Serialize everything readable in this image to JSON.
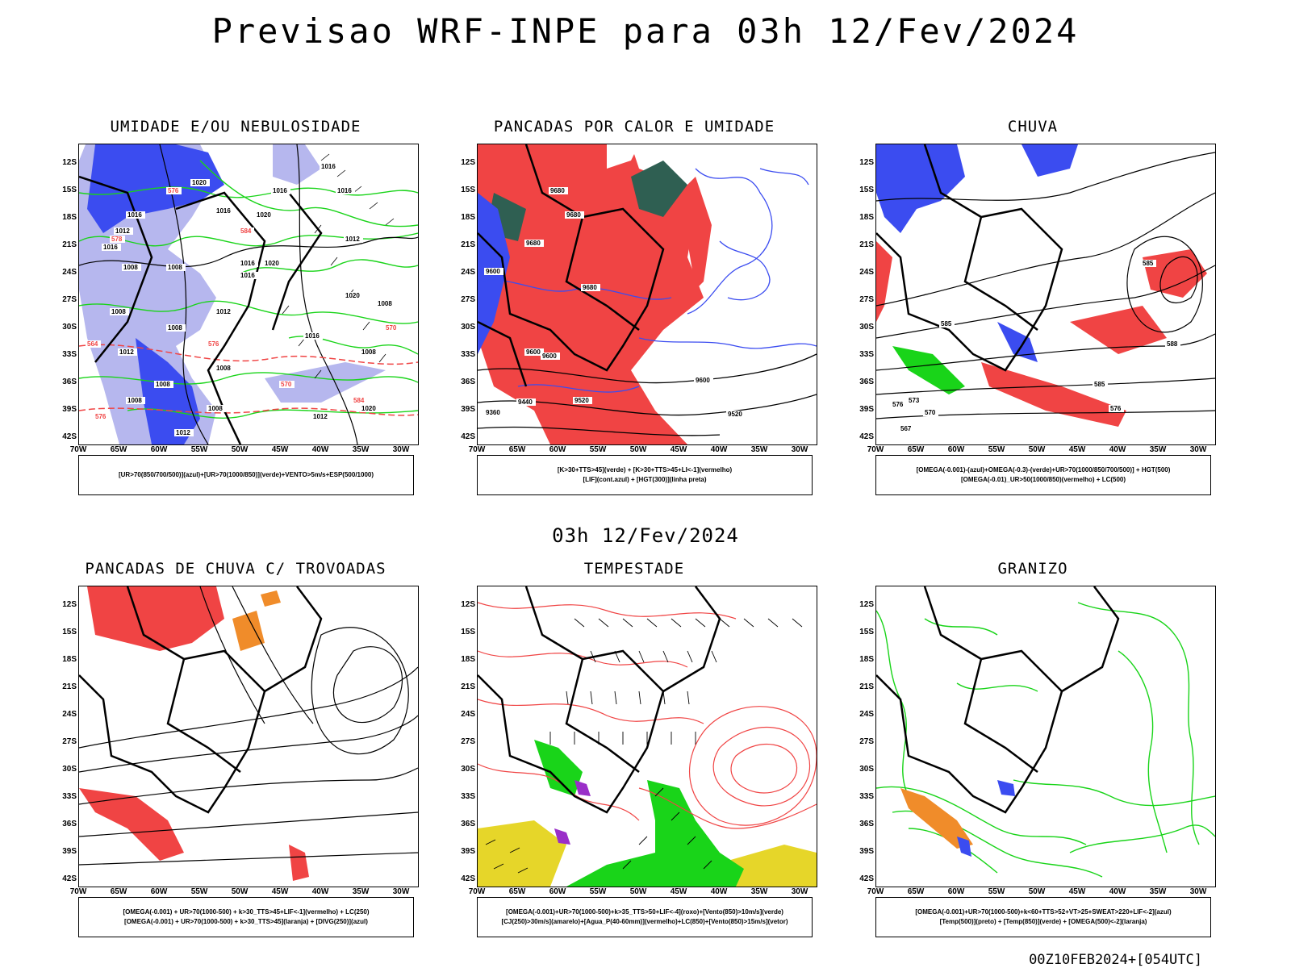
{
  "header": {
    "title": "Previsao WRF-INPE  para 03h 12/Fev/2024"
  },
  "subheader": {
    "time": "03h 12/Fev/2024"
  },
  "footer": {
    "run": "00Z10FEB2024+[054UTC]"
  },
  "axes": {
    "lat_labels": [
      "12S",
      "15S",
      "18S",
      "21S",
      "24S",
      "27S",
      "30S",
      "33S",
      "36S",
      "39S",
      "42S"
    ],
    "lon_labels": [
      "70W",
      "65W",
      "60W",
      "55W",
      "50W",
      "45W",
      "40W",
      "35W",
      "30W"
    ]
  },
  "colors": {
    "blue": "#3b4cf0",
    "light_blue": "#b6b7ee",
    "green": "#19d419",
    "red": "#f04444",
    "dark_teal": "#2f5f52",
    "orange": "#f08c2a",
    "yellow": "#e6d629",
    "purple": "#9a2fc8",
    "black": "#000000"
  },
  "panels": [
    {
      "title": "UMIDADE E/OU NEBULOSIDADE",
      "legend": [
        "[UR>70(850/700/500)](azul)+[UR>70(1000/850)](verde)+VENTO>5m/s+ESP(500/1000)"
      ]
    },
    {
      "title": "PANCADAS POR CALOR E UMIDADE",
      "legend": [
        "[K>30+TTS>45](verde) + [K>30+TTS>45+LI<-1](vermelho)",
        "[LIF](cont.azul) + [HGT(300)](linha preta)"
      ]
    },
    {
      "title": "CHUVA",
      "legend": [
        "[OMEGA(-0.001)-(azul)+OMEGA(-0.3)-(verde)+UR>70(1000/850/700/500)] + HGT(500)",
        "[OMEGA(-0.01)_UR>50(1000/850)(vermelho) + LC(500)"
      ]
    },
    {
      "title": "PANCADAS DE CHUVA C/ TROVOADAS",
      "legend": [
        "[OMEGA(-0.001) + UR>70(1000-500) + k>30_TTS>45+LIF<-1](vermelho) + LC(250)",
        "[OMEGA(-0.001) + UR>70(1000-500) + k>30_TTS>45](laranja) + [DIVG(250)](azul)"
      ]
    },
    {
      "title": "TEMPESTADE",
      "legend": [
        "[OMEGA(-0.001)+UR>70(1000-500)+k>35_TTS>50+LIF<-4](roxo)+[Vento(850)>10m/s](verde)",
        "[CJ(250)>30m/s](amarelo)+[Agua_P(40-60mm)](vermelho)+LC(850)+[Vento(850)>15m/s](vetor)"
      ]
    },
    {
      "title": "GRANIZO",
      "legend": [
        "[OMEGA(-0.001)+UR>70(1000-500)+k<60+TTS>52+VT>25+SWEAT>220+LIF<-2](azul)",
        "[Temp(500)](preto) + [Temp(850)](verde) + [OMEGA(500)<-2](laranja)"
      ]
    }
  ],
  "map_labels": {
    "p1": [
      "1016",
      "1016",
      "1012",
      "1016",
      "1016",
      "1008",
      "1008",
      "1016",
      "1016",
      "1008",
      "1012",
      "1008",
      "1020",
      "1016",
      "1020",
      "1012",
      "1008",
      "1008",
      "1012",
      "1020",
      "1008",
      "1012",
      "1016",
      "1008",
      "1008",
      "1020",
      "1012",
      "1016",
      "1020",
      "1008"
    ],
    "p1_red": [
      "576",
      "578",
      "584",
      "576",
      "570",
      "564",
      "576",
      "584",
      "570"
    ],
    "p2": [
      "9680",
      "9680",
      "9600",
      "9680",
      "9680",
      "9600",
      "9600",
      "9520",
      "9520",
      "9440",
      "9360",
      "9600"
    ],
    "p3": [
      "585",
      "585",
      "576",
      "573",
      "570",
      "567",
      "585",
      "576",
      "588"
    ]
  }
}
